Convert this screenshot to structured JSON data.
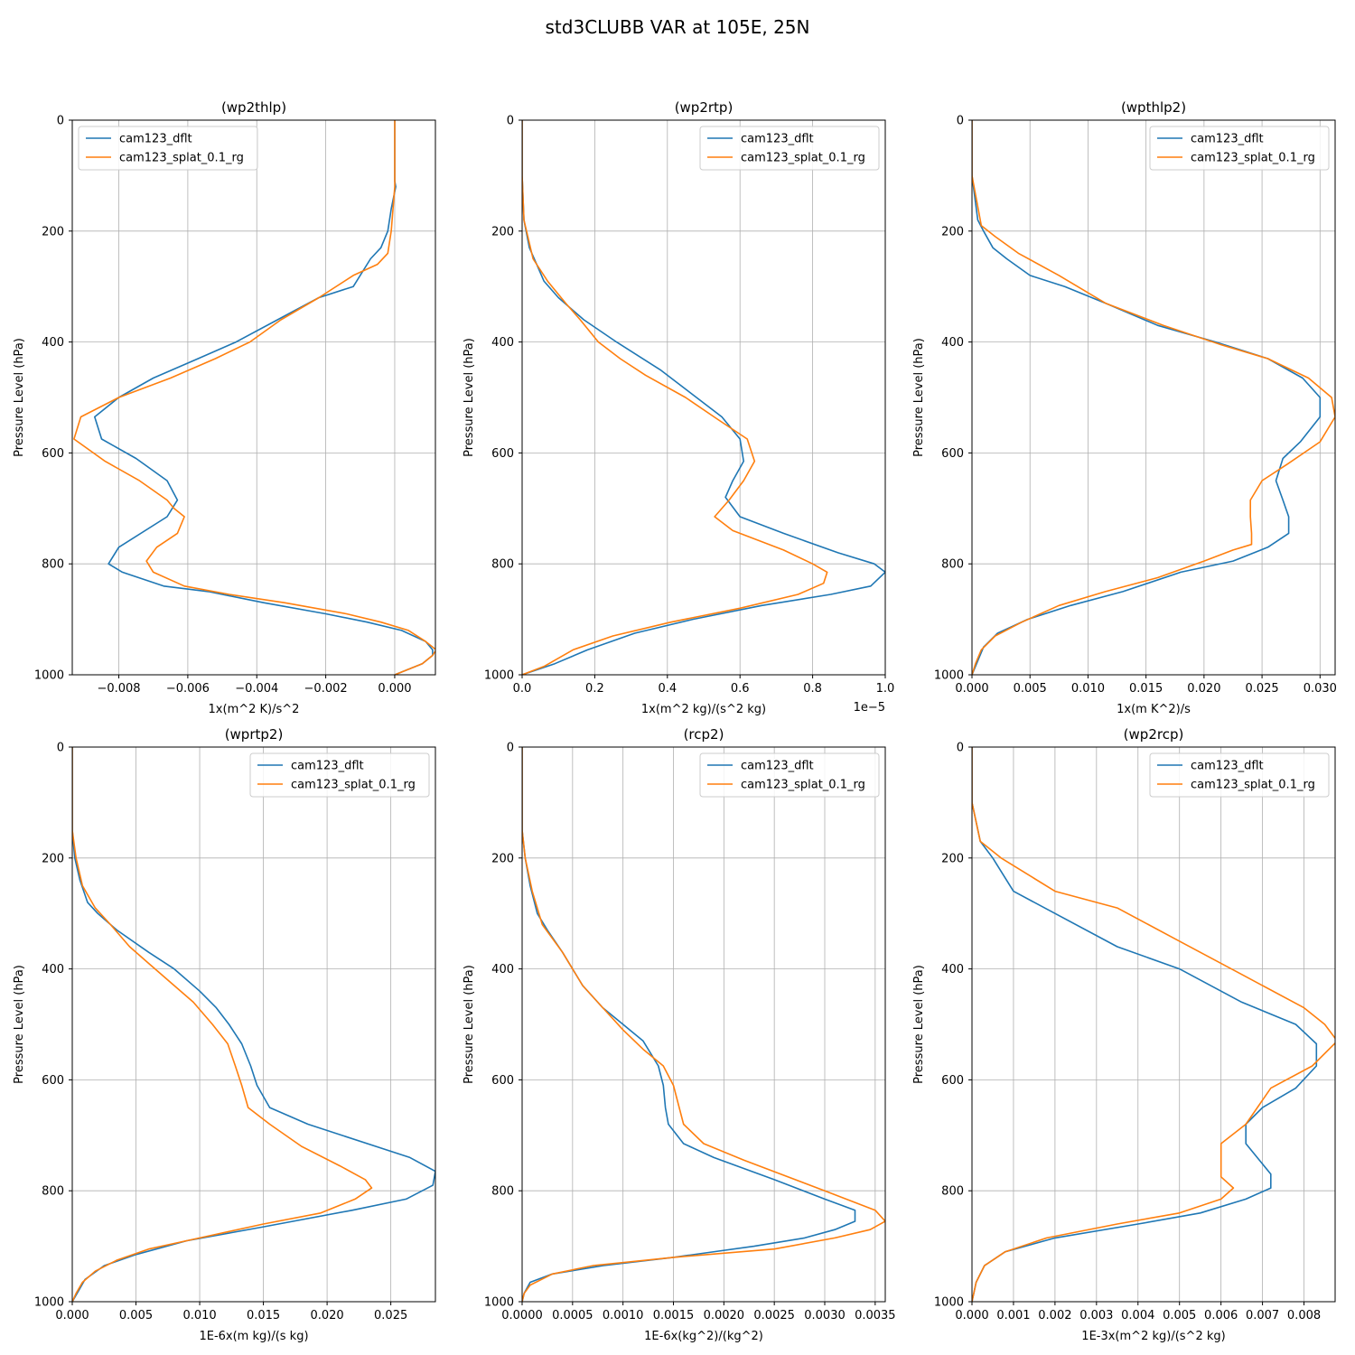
{
  "suptitle": "std3CLUBB VAR at 105E, 25N",
  "legend_labels": [
    "cam123_dflt",
    "cam123_splat_0.1_rg"
  ],
  "series_colors": [
    "#1f77b4",
    "#ff7f0e"
  ],
  "ylabel": "Pressure Level (hPa)",
  "chart_data": [
    {
      "type": "line",
      "title": "(wp2thlp)",
      "xlabel": "1x(m^2 K)/s^2",
      "xlim": [
        -0.00935,
        0.00118
      ],
      "xticks": [
        -0.008,
        -0.006,
        -0.004,
        -0.002,
        0.0
      ],
      "xtick_labels": [
        "−0.008",
        "−0.006",
        "−0.004",
        "−0.002",
        "0.000"
      ],
      "ylim": [
        1000,
        0
      ],
      "yticks": [
        0,
        200,
        400,
        600,
        800,
        1000
      ],
      "legend_loc": "upper left",
      "series": [
        {
          "name": "cam123_dflt",
          "x": [
            0.0,
            0.0,
            0.0,
            3e-05,
            -0.0001,
            -0.0002,
            -0.0004,
            -0.0007,
            -0.0012,
            -0.0022,
            -0.0034,
            -0.0046,
            -0.0057,
            -0.007,
            -0.008,
            -0.0087,
            -0.0085,
            -0.0075,
            -0.0066,
            -0.0063,
            -0.0066,
            -0.008,
            -0.0083,
            -0.0079,
            -0.0067,
            -0.0054,
            -0.0038,
            -0.002,
            -0.0008,
            0.0002,
            0.0009,
            0.0011,
            0.0011,
            0.0008,
            0.0
          ],
          "y": [
            0,
            60,
            110,
            120,
            160,
            200,
            230,
            250,
            300,
            320,
            360,
            400,
            430,
            465,
            500,
            535,
            575,
            610,
            650,
            685,
            715,
            770,
            800,
            815,
            840,
            850,
            870,
            890,
            905,
            920,
            940,
            955,
            965,
            980,
            1000
          ]
        },
        {
          "name": "cam123_splat_0.1_rg",
          "x": [
            0.0,
            0.0,
            0.0,
            -0.0001,
            -0.0002,
            -0.0005,
            -0.0012,
            -0.0022,
            -0.0033,
            -0.0042,
            -0.0052,
            -0.0065,
            -0.008,
            -0.0091,
            -0.0093,
            -0.0084,
            -0.0074,
            -0.0066,
            -0.0064,
            -0.0061,
            -0.0063,
            -0.0069,
            -0.0072,
            -0.007,
            -0.0061,
            -0.0048,
            -0.0032,
            -0.0014,
            -0.0004,
            0.0004,
            0.0009,
            0.0012,
            0.0011,
            0.0008,
            0.0
          ],
          "y": [
            0,
            60,
            120,
            200,
            240,
            260,
            280,
            320,
            360,
            400,
            430,
            465,
            500,
            535,
            575,
            615,
            650,
            685,
            700,
            715,
            745,
            770,
            795,
            815,
            840,
            855,
            870,
            890,
            905,
            920,
            940,
            955,
            965,
            980,
            1000
          ]
        }
      ]
    },
    {
      "type": "line",
      "title": "(wp2rtp)",
      "xlabel": "1x(m^2 kg)/(s^2 kg)",
      "offset_label": "1e−5",
      "xlim": [
        0.0,
        1.0
      ],
      "xticks": [
        0.0,
        0.2,
        0.4,
        0.6,
        0.8,
        1.0
      ],
      "xtick_labels": [
        "0.0",
        "0.2",
        "0.4",
        "0.6",
        "0.8",
        "1.0"
      ],
      "ylim": [
        1000,
        0
      ],
      "yticks": [
        0,
        200,
        400,
        600,
        800,
        1000
      ],
      "legend_loc": "upper right",
      "series": [
        {
          "name": "cam123_dflt",
          "x": [
            0.0,
            0.0,
            0.005,
            0.02,
            0.04,
            0.06,
            0.1,
            0.17,
            0.26,
            0.38,
            0.48,
            0.55,
            0.6,
            0.61,
            0.58,
            0.56,
            0.6,
            0.72,
            0.87,
            0.97,
            1.0,
            0.96,
            0.85,
            0.66,
            0.47,
            0.31,
            0.18,
            0.09,
            0.0
          ],
          "y": [
            0,
            100,
            180,
            230,
            260,
            290,
            320,
            360,
            400,
            450,
            500,
            535,
            575,
            615,
            650,
            680,
            715,
            745,
            780,
            800,
            815,
            840,
            855,
            875,
            900,
            925,
            955,
            980,
            1000
          ]
        },
        {
          "name": "cam123_splat_0.1_rg",
          "x": [
            0.0,
            0.0,
            0.005,
            0.03,
            0.07,
            0.12,
            0.16,
            0.21,
            0.27,
            0.34,
            0.45,
            0.54,
            0.62,
            0.64,
            0.61,
            0.57,
            0.53,
            0.58,
            0.72,
            0.8,
            0.84,
            0.83,
            0.76,
            0.6,
            0.41,
            0.25,
            0.14,
            0.06,
            0.0
          ],
          "y": [
            0,
            100,
            180,
            250,
            290,
            330,
            360,
            400,
            430,
            460,
            500,
            540,
            575,
            615,
            650,
            685,
            715,
            740,
            775,
            800,
            815,
            835,
            855,
            880,
            905,
            930,
            955,
            985,
            1000
          ]
        }
      ]
    },
    {
      "type": "line",
      "title": "(wpthlp2)",
      "xlabel": "1x(m K^2)/s",
      "xlim": [
        0.0,
        0.0313
      ],
      "xticks": [
        0.0,
        0.005,
        0.01,
        0.015,
        0.02,
        0.025,
        0.03
      ],
      "xtick_labels": [
        "0.000",
        "0.005",
        "0.010",
        "0.015",
        "0.020",
        "0.025",
        "0.030"
      ],
      "ylim": [
        1000,
        0
      ],
      "yticks": [
        0,
        200,
        400,
        600,
        800,
        1000
      ],
      "legend_loc": "upper right",
      "series": [
        {
          "name": "cam123_dflt",
          "x": [
            0.0,
            0.0,
            0.0005,
            0.001,
            0.0018,
            0.003,
            0.005,
            0.008,
            0.0115,
            0.016,
            0.021,
            0.0255,
            0.0285,
            0.03,
            0.03,
            0.0283,
            0.0268,
            0.0262,
            0.0268,
            0.0273,
            0.0273,
            0.0255,
            0.0225,
            0.018,
            0.013,
            0.0085,
            0.0048,
            0.0022,
            0.001,
            0.0005,
            0.0
          ],
          "y": [
            0,
            100,
            180,
            200,
            230,
            250,
            280,
            300,
            330,
            370,
            400,
            430,
            465,
            500,
            535,
            580,
            610,
            650,
            685,
            715,
            745,
            770,
            795,
            815,
            850,
            875,
            900,
            925,
            950,
            975,
            1000
          ]
        },
        {
          "name": "cam123_splat_0.1_rg",
          "x": [
            0.0,
            0.0,
            0.0008,
            0.002,
            0.004,
            0.0075,
            0.0115,
            0.0165,
            0.0215,
            0.0255,
            0.029,
            0.031,
            0.0313,
            0.03,
            0.0272,
            0.025,
            0.024,
            0.024,
            0.0241,
            0.0241,
            0.0225,
            0.02,
            0.016,
            0.0115,
            0.0075,
            0.0043,
            0.002,
            0.0008,
            0.0003,
            0.0
          ],
          "y": [
            0,
            100,
            190,
            210,
            240,
            280,
            330,
            370,
            405,
            430,
            465,
            500,
            535,
            580,
            620,
            650,
            685,
            715,
            745,
            765,
            775,
            795,
            825,
            850,
            875,
            905,
            930,
            955,
            980,
            1000
          ]
        }
      ]
    },
    {
      "type": "line",
      "title": "(wprtp2)",
      "xlabel": "1E-6x(m kg)/(s kg)",
      "xlim": [
        0.0,
        0.0285
      ],
      "xticks": [
        0.0,
        0.005,
        0.01,
        0.015,
        0.02,
        0.025
      ],
      "xtick_labels": [
        "0.000",
        "0.005",
        "0.010",
        "0.015",
        "0.020",
        "0.025"
      ],
      "ylim": [
        1000,
        0
      ],
      "yticks": [
        0,
        200,
        400,
        600,
        800,
        1000
      ],
      "legend_loc": "upper right",
      "series": [
        {
          "name": "cam123_dflt",
          "x": [
            0.0,
            0.0,
            0.0002,
            0.0006,
            0.0012,
            0.002,
            0.0035,
            0.006,
            0.008,
            0.01,
            0.0113,
            0.0123,
            0.0133,
            0.014,
            0.0145,
            0.0155,
            0.0185,
            0.0265,
            0.0285,
            0.0283,
            0.0262,
            0.022,
            0.015,
            0.009,
            0.005,
            0.0025,
            0.001,
            0.0005,
            0.0
          ],
          "y": [
            0,
            150,
            200,
            240,
            280,
            300,
            330,
            370,
            400,
            440,
            470,
            500,
            535,
            575,
            610,
            650,
            680,
            740,
            765,
            790,
            815,
            835,
            865,
            890,
            915,
            935,
            960,
            980,
            1000
          ]
        },
        {
          "name": "cam123_splat_0.1_rg",
          "x": [
            0.0,
            0.0,
            0.0003,
            0.0008,
            0.0018,
            0.003,
            0.0045,
            0.006,
            0.008,
            0.0095,
            0.011,
            0.0122,
            0.0128,
            0.0133,
            0.0138,
            0.0155,
            0.018,
            0.021,
            0.023,
            0.0235,
            0.0222,
            0.0195,
            0.015,
            0.01,
            0.006,
            0.0035,
            0.0018,
            0.0008,
            0.0003,
            0.0
          ],
          "y": [
            0,
            150,
            200,
            250,
            290,
            320,
            360,
            390,
            430,
            460,
            500,
            535,
            575,
            610,
            650,
            680,
            720,
            755,
            780,
            795,
            815,
            840,
            860,
            885,
            905,
            925,
            945,
            965,
            985,
            1000
          ]
        }
      ]
    },
    {
      "type": "line",
      "title": "(rcp2)",
      "xlabel": "1E-6x(kg^2)/(kg^2)",
      "xlim": [
        0.0,
        0.0036
      ],
      "xticks": [
        0.0,
        0.0005,
        0.001,
        0.0015,
        0.002,
        0.0025,
        0.003,
        0.0035
      ],
      "xtick_labels": [
        "0.0000",
        "0.0005",
        "0.0010",
        "0.0015",
        "0.0020",
        "0.0025",
        "0.0030",
        "0.0035"
      ],
      "ylim": [
        1000,
        0
      ],
      "yticks": [
        0,
        200,
        400,
        600,
        800,
        1000
      ],
      "legend_loc": "upper right",
      "series": [
        {
          "name": "cam123_dflt",
          "x": [
            0.0,
            0.0,
            3e-05,
            8e-05,
            0.00015,
            0.00025,
            0.0004,
            0.0006,
            0.0008,
            0.001,
            0.0012,
            0.00135,
            0.0014,
            0.00142,
            0.00145,
            0.0016,
            0.0019,
            0.0025,
            0.003,
            0.0033,
            0.0033,
            0.0031,
            0.0028,
            0.0023,
            0.0015,
            0.0008,
            0.0003,
            8e-05,
            2e-05,
            0.0
          ],
          "y": [
            0,
            150,
            200,
            250,
            300,
            330,
            370,
            430,
            470,
            500,
            530,
            575,
            610,
            650,
            680,
            715,
            740,
            780,
            815,
            835,
            855,
            870,
            885,
            900,
            920,
            935,
            950,
            965,
            985,
            1000
          ]
        },
        {
          "name": "cam123_splat_0.1_rg",
          "x": [
            0.0,
            0.0,
            3e-05,
            0.0001,
            0.0002,
            0.0004,
            0.0006,
            0.0008,
            0.001,
            0.0012,
            0.0014,
            0.0015,
            0.0016,
            0.0018,
            0.0022,
            0.003,
            0.0035,
            0.0036,
            0.00345,
            0.0031,
            0.0025,
            0.0015,
            0.0007,
            0.0003,
            8e-05,
            2e-05,
            0.0
          ],
          "y": [
            0,
            150,
            200,
            260,
            320,
            370,
            430,
            470,
            510,
            545,
            575,
            610,
            680,
            715,
            745,
            800,
            835,
            855,
            870,
            885,
            905,
            920,
            935,
            950,
            970,
            985,
            1000
          ]
        }
      ]
    },
    {
      "type": "line",
      "title": "(wp2rcp)",
      "xlabel": "1E-3x(m^2 kg)/(s^2 kg)",
      "xlim": [
        0.0,
        0.00875
      ],
      "xticks": [
        0.0,
        0.001,
        0.002,
        0.003,
        0.004,
        0.005,
        0.006,
        0.007,
        0.008
      ],
      "xtick_labels": [
        "0.000",
        "0.001",
        "0.002",
        "0.003",
        "0.004",
        "0.005",
        "0.006",
        "0.007",
        "0.008"
      ],
      "ylim": [
        1000,
        0
      ],
      "yticks": [
        0,
        200,
        400,
        600,
        800,
        1000
      ],
      "legend_loc": "upper right",
      "series": [
        {
          "name": "cam123_dflt",
          "x": [
            0.0,
            0.0,
            0.0002,
            0.0005,
            0.001,
            0.002,
            0.0035,
            0.005,
            0.0065,
            0.0078,
            0.0083,
            0.0083,
            0.0078,
            0.007,
            0.0066,
            0.0066,
            0.0072,
            0.0072,
            0.0066,
            0.0055,
            0.004,
            0.002,
            0.0008,
            0.0003,
            0.0001,
            0.0
          ],
          "y": [
            0,
            100,
            170,
            200,
            260,
            300,
            360,
            400,
            460,
            500,
            535,
            575,
            615,
            650,
            680,
            715,
            770,
            795,
            815,
            840,
            860,
            885,
            910,
            935,
            965,
            1000
          ]
        },
        {
          "name": "cam123_splat_0.1_rg",
          "x": [
            0.0,
            0.0,
            0.0002,
            0.0007,
            0.002,
            0.0035,
            0.005,
            0.0065,
            0.008,
            0.0085,
            0.0088,
            0.0082,
            0.0072,
            0.0066,
            0.006,
            0.006,
            0.0063,
            0.006,
            0.005,
            0.0035,
            0.0018,
            0.0008,
            0.0003,
            0.0001,
            0.0
          ],
          "y": [
            0,
            100,
            170,
            200,
            260,
            290,
            350,
            410,
            470,
            500,
            530,
            575,
            615,
            680,
            715,
            775,
            795,
            815,
            840,
            860,
            885,
            910,
            935,
            965,
            1000
          ]
        }
      ]
    }
  ]
}
